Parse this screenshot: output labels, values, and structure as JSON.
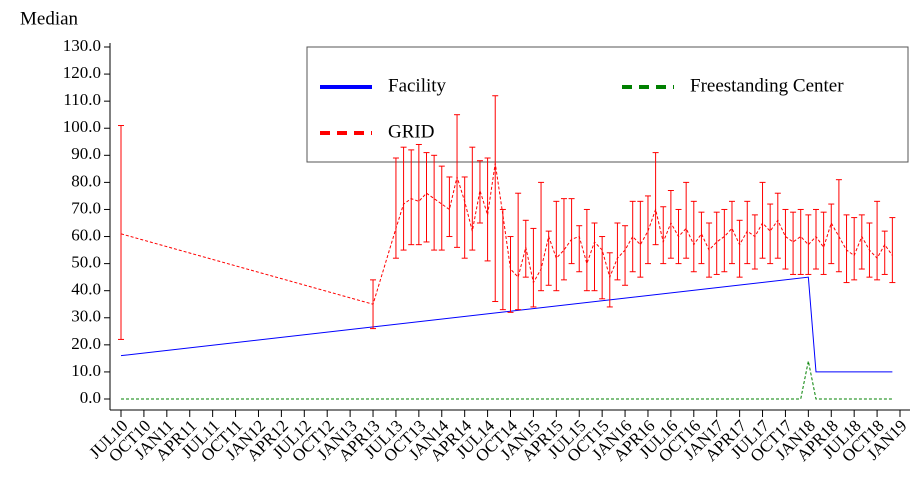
{
  "chart_data": {
    "type": "line",
    "y_label": "Median",
    "xlim": [
      "2010-07",
      "2019-01"
    ],
    "xticks": [
      {
        "value": "2010-07",
        "label": "JUL10"
      },
      {
        "value": "2010-10",
        "label": "OCT10"
      },
      {
        "value": "2011-01",
        "label": "JAN11"
      },
      {
        "value": "2011-04",
        "label": "APR11"
      },
      {
        "value": "2011-07",
        "label": "JUL11"
      },
      {
        "value": "2011-10",
        "label": "OCT11"
      },
      {
        "value": "2012-01",
        "label": "JAN12"
      },
      {
        "value": "2012-04",
        "label": "APR12"
      },
      {
        "value": "2012-07",
        "label": "JUL12"
      },
      {
        "value": "2012-10",
        "label": "OCT12"
      },
      {
        "value": "2013-01",
        "label": "JAN13"
      },
      {
        "value": "2013-04",
        "label": "APR13"
      },
      {
        "value": "2013-07",
        "label": "JUL13"
      },
      {
        "value": "2013-10",
        "label": "OCT13"
      },
      {
        "value": "2014-01",
        "label": "JAN14"
      },
      {
        "value": "2014-04",
        "label": "APR14"
      },
      {
        "value": "2014-07",
        "label": "JUL14"
      },
      {
        "value": "2014-10",
        "label": "OCT14"
      },
      {
        "value": "2015-01",
        "label": "JAN15"
      },
      {
        "value": "2015-04",
        "label": "APR15"
      },
      {
        "value": "2015-07",
        "label": "JUL15"
      },
      {
        "value": "2015-10",
        "label": "OCT15"
      },
      {
        "value": "2016-01",
        "label": "JAN16"
      },
      {
        "value": "2016-04",
        "label": "APR16"
      },
      {
        "value": "2016-07",
        "label": "JUL16"
      },
      {
        "value": "2016-10",
        "label": "OCT16"
      },
      {
        "value": "2017-01",
        "label": "JAN17"
      },
      {
        "value": "2017-04",
        "label": "APR17"
      },
      {
        "value": "2017-07",
        "label": "JUL17"
      },
      {
        "value": "2017-10",
        "label": "OCT17"
      },
      {
        "value": "2018-01",
        "label": "JAN18"
      },
      {
        "value": "2018-04",
        "label": "APR18"
      },
      {
        "value": "2018-07",
        "label": "JUL18"
      },
      {
        "value": "2018-10",
        "label": "OCT18"
      },
      {
        "value": "2019-01",
        "label": "JAN19"
      }
    ],
    "ylim": [
      0,
      130
    ],
    "yticks": [
      {
        "value": 0,
        "label": "0.0"
      },
      {
        "value": 10,
        "label": "10.0"
      },
      {
        "value": 20,
        "label": "20.0"
      },
      {
        "value": 30,
        "label": "30.0"
      },
      {
        "value": 40,
        "label": "40.0"
      },
      {
        "value": 50,
        "label": "50.0"
      },
      {
        "value": 60,
        "label": "60.0"
      },
      {
        "value": 70,
        "label": "70.0"
      },
      {
        "value": 80,
        "label": "80.0"
      },
      {
        "value": 90,
        "label": "90.0"
      },
      {
        "value": 100,
        "label": "100.0"
      },
      {
        "value": 110,
        "label": "110.0"
      },
      {
        "value": 120,
        "label": "120.0"
      },
      {
        "value": 130,
        "label": "130.0"
      }
    ],
    "series": [
      {
        "name": "Facility",
        "color": "#0000ff",
        "dash": false,
        "x": [
          "2010-07",
          "2018-01",
          "2018-02",
          "2018-12"
        ],
        "values": [
          16,
          45,
          10,
          10
        ]
      },
      {
        "name": "Freestanding Center",
        "color": "#008000",
        "dash": true,
        "x": [
          "2010-07",
          "2017-12",
          "2018-01",
          "2018-02",
          "2018-12"
        ],
        "values": [
          0,
          0,
          14,
          0,
          0
        ]
      },
      {
        "name": "GRID",
        "color": "#ff0000",
        "dash": true,
        "x": [
          "2010-07",
          "2013-04",
          "2013-07",
          "2013-08",
          "2013-09",
          "2013-10",
          "2013-11",
          "2013-12",
          "2014-01",
          "2014-02",
          "2014-03",
          "2014-04",
          "2014-05",
          "2014-06",
          "2014-07",
          "2014-08",
          "2014-09",
          "2014-10",
          "2014-11",
          "2014-12",
          "2015-01",
          "2015-02",
          "2015-03",
          "2015-04",
          "2015-05",
          "2015-06",
          "2015-07",
          "2015-08",
          "2015-09",
          "2015-10",
          "2015-11",
          "2015-12",
          "2016-01",
          "2016-02",
          "2016-03",
          "2016-04",
          "2016-05",
          "2016-06",
          "2016-07",
          "2016-08",
          "2016-09",
          "2016-10",
          "2016-11",
          "2016-12",
          "2017-01",
          "2017-02",
          "2017-03",
          "2017-04",
          "2017-05",
          "2017-06",
          "2017-07",
          "2017-08",
          "2017-09",
          "2017-10",
          "2017-11",
          "2017-12",
          "2018-01",
          "2018-02",
          "2018-03",
          "2018-04",
          "2018-05",
          "2018-06",
          "2018-07",
          "2018-08",
          "2018-09",
          "2018-10",
          "2018-11",
          "2018-12"
        ],
        "values": [
          61,
          35,
          63,
          72,
          74,
          73,
          76,
          74,
          72,
          70,
          82,
          73,
          62,
          77,
          68,
          87,
          68,
          48,
          45,
          56,
          43,
          48,
          60,
          52,
          55,
          59,
          60,
          50,
          58,
          55,
          45,
          52,
          55,
          60,
          57,
          62,
          70,
          58,
          65,
          60,
          63,
          57,
          61,
          55,
          58,
          60,
          63,
          57,
          62,
          60,
          65,
          62,
          66,
          60,
          58,
          60,
          57,
          60,
          56,
          65,
          60,
          55,
          53,
          60,
          55,
          52,
          57,
          53
        ],
        "lower": [
          22,
          26,
          52,
          55,
          57,
          57,
          58,
          55,
          55,
          60,
          56,
          52,
          55,
          65,
          51,
          36,
          33,
          32,
          33,
          45,
          34,
          40,
          42,
          40,
          44,
          50,
          47,
          40,
          40,
          37,
          34,
          44,
          42,
          47,
          45,
          50,
          57,
          50,
          52,
          50,
          52,
          47,
          50,
          45,
          46,
          47,
          50,
          45,
          50,
          48,
          52,
          50,
          52,
          48,
          46,
          46,
          46,
          48,
          46,
          50,
          47,
          43,
          44,
          48,
          45,
          44,
          46,
          43
        ],
        "upper": [
          101,
          44,
          89,
          93,
          92,
          94,
          91,
          90,
          86,
          82,
          105,
          82,
          93,
          88,
          89,
          112,
          70,
          60,
          76,
          66,
          63,
          80,
          62,
          73,
          74,
          74,
          64,
          70,
          65,
          60,
          54,
          65,
          64,
          73,
          73,
          75,
          91,
          71,
          77,
          70,
          80,
          73,
          69,
          65,
          69,
          70,
          73,
          66,
          73,
          68,
          80,
          72,
          76,
          70,
          69,
          70,
          68,
          70,
          69,
          72,
          81,
          68,
          67,
          68,
          65,
          73,
          62,
          67
        ]
      }
    ]
  }
}
